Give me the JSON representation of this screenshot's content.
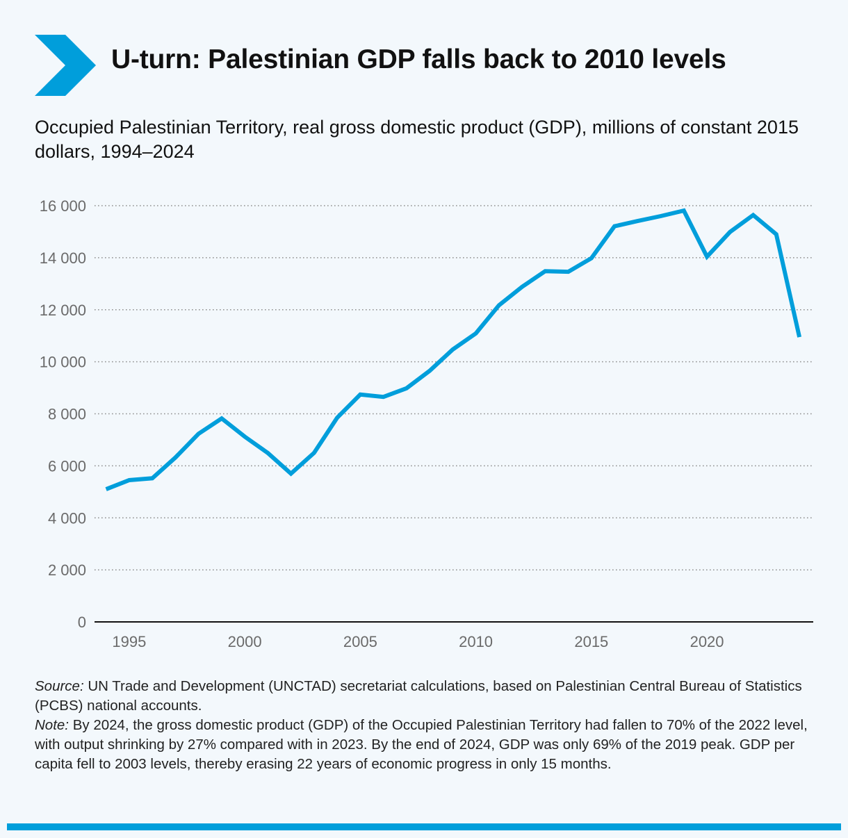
{
  "header": {
    "title": "U-turn: Palestinian GDP falls back to 2010 levels",
    "subtitle": "Occupied Palestinian Territory, real gross domestic product (GDP), millions of constant 2015 dollars, 1994–2024",
    "accent_color": "#009edb",
    "icon": "chevron-right-icon"
  },
  "chart_data": {
    "type": "line",
    "title": "U-turn: Palestinian GDP falls back to 2010 levels",
    "subtitle": "Occupied Palestinian Territory, real gross domestic product (GDP), millions of constant 2015 dollars, 1994–2024",
    "xlabel": "",
    "ylabel": "",
    "xlim": [
      1993.5,
      2024.6
    ],
    "ylim": [
      0,
      16000
    ],
    "y_ticks": [
      0,
      2000,
      4000,
      6000,
      8000,
      10000,
      12000,
      14000,
      16000
    ],
    "y_tick_labels": [
      "0",
      "2 000",
      "4 000",
      "6 000",
      "8 000",
      "10 000",
      "12 000",
      "14 000",
      "16 000"
    ],
    "x_ticks": [
      1995,
      2000,
      2005,
      2010,
      2015,
      2020
    ],
    "x_tick_labels": [
      "1995",
      "2000",
      "2005",
      "2010",
      "2015",
      "2020"
    ],
    "grid": "horizontal-dotted",
    "line_color": "#009edb",
    "series": [
      {
        "x": [
          1994,
          1995,
          1996,
          1997,
          1998,
          1999,
          2000,
          2001,
          2002,
          2003,
          2004,
          2005,
          2006,
          2007,
          2008,
          2009,
          2010,
          2011,
          2012,
          2013,
          2014,
          2015,
          2016,
          2017,
          2018,
          2019,
          2020,
          2021,
          2022,
          2023,
          2024
        ],
        "values": [
          5100,
          5450,
          5520,
          6320,
          7230,
          7820,
          7120,
          6490,
          5700,
          6500,
          7850,
          8740,
          8650,
          8980,
          9650,
          10470,
          11090,
          12170,
          12880,
          13480,
          13460,
          13980,
          15210,
          15410,
          15600,
          15810,
          14040,
          14990,
          15640,
          14900,
          10950
        ]
      }
    ]
  },
  "footer": {
    "source_label": "Source:",
    "source_text": " UN Trade and Development (UNCTAD) secretariat calculations, based on Palestinian Central Bureau of Statistics (PCBS) national accounts.",
    "note_label": "Note:",
    "note_text": " By 2024, the gross domestic product (GDP) of the Occupied Palestinian Territory had fallen to 70% of the 2022 level, with output shrinking by 27% compared with in 2023. By the end of 2024, GDP was only 69% of the 2019 peak. GDP per capita fell to 2003 levels, thereby erasing 22 years of economic progress in only 15 months."
  }
}
